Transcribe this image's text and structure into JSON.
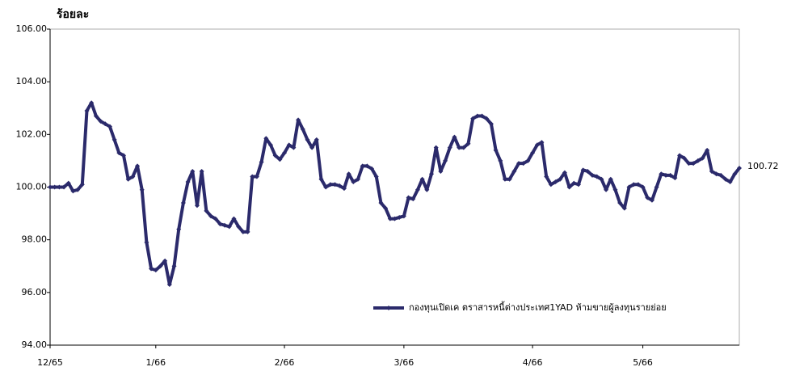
{
  "chart_data": {
    "type": "line",
    "title": "ร้อยละ",
    "categories": [
      "12/65",
      null,
      null,
      null,
      null,
      null,
      null,
      null,
      null,
      null,
      null,
      null,
      null,
      null,
      null,
      null,
      null,
      null,
      null,
      null,
      null,
      null,
      null,
      "1/66",
      null,
      null,
      null,
      null,
      null,
      null,
      null,
      null,
      null,
      null,
      null,
      null,
      null,
      null,
      null,
      null,
      null,
      null,
      null,
      null,
      null,
      null,
      null,
      null,
      null,
      null,
      null,
      "2/66",
      null,
      null,
      null,
      null,
      null,
      null,
      null,
      null,
      null,
      null,
      null,
      null,
      null,
      null,
      null,
      null,
      null,
      null,
      null,
      null,
      null,
      null,
      null,
      null,
      null,
      "3/66",
      null,
      null,
      null,
      null,
      null,
      null,
      null,
      null,
      null,
      null,
      null,
      null,
      null,
      null,
      null,
      null,
      null,
      null,
      null,
      null,
      null,
      null,
      null,
      null,
      null,
      null,
      null,
      "4/66",
      null,
      null,
      null,
      null,
      null,
      null,
      null,
      null,
      null,
      null,
      null,
      null,
      null,
      null,
      null,
      null,
      null,
      null,
      null,
      null,
      null,
      null,
      null,
      "5/66",
      null,
      null,
      null,
      null,
      null,
      null,
      null,
      null,
      null,
      null,
      null,
      null,
      null,
      null,
      null,
      null,
      null,
      null,
      null,
      null,
      null
    ],
    "series": [
      {
        "name": "กองทุนเปิดเค ตราสารหนี้ต่างประเทศ1YAD ห้ามขายผู้ลงทุนรายย่อย",
        "color": "#2b2a6b",
        "values": [
          100.0,
          100.0,
          100.0,
          100.0,
          100.15,
          99.85,
          99.9,
          100.1,
          102.9,
          103.2,
          102.7,
          102.5,
          102.4,
          102.3,
          101.8,
          101.3,
          101.2,
          100.3,
          100.4,
          100.8,
          99.9,
          97.9,
          96.9,
          96.85,
          97.0,
          97.2,
          96.3,
          97.0,
          98.4,
          99.4,
          100.2,
          100.6,
          99.3,
          100.6,
          99.1,
          98.9,
          98.8,
          98.6,
          98.55,
          98.5,
          98.8,
          98.5,
          98.3,
          98.3,
          100.4,
          100.4,
          100.95,
          101.85,
          101.6,
          101.2,
          101.05,
          101.3,
          101.6,
          101.5,
          102.55,
          102.2,
          101.8,
          101.5,
          101.8,
          100.3,
          100.0,
          100.1,
          100.1,
          100.05,
          99.95,
          100.5,
          100.2,
          100.3,
          100.8,
          100.8,
          100.7,
          100.4,
          99.4,
          99.2,
          98.8,
          98.8,
          98.85,
          98.9,
          99.6,
          99.55,
          99.9,
          100.3,
          99.9,
          100.5,
          101.5,
          100.6,
          101.0,
          101.5,
          101.9,
          101.5,
          101.5,
          101.65,
          102.6,
          102.7,
          102.7,
          102.6,
          102.4,
          101.4,
          101.0,
          100.3,
          100.3,
          100.6,
          100.9,
          100.9,
          101.0,
          101.3,
          101.6,
          101.7,
          100.4,
          100.1,
          100.2,
          100.3,
          100.55,
          100.0,
          100.15,
          100.1,
          100.65,
          100.6,
          100.45,
          100.4,
          100.3,
          99.9,
          100.3,
          99.9,
          99.4,
          99.2,
          100.0,
          100.1,
          100.1,
          100.0,
          99.6,
          99.5,
          100.0,
          100.5,
          100.45,
          100.45,
          100.35,
          101.2,
          101.1,
          100.9,
          100.9,
          101.0,
          101.1,
          101.4,
          100.6,
          100.5,
          100.45,
          100.3,
          100.2,
          100.5,
          100.72
        ]
      }
    ],
    "ylim": [
      94,
      106
    ],
    "yticks": [
      {
        "value": 94,
        "label": "94.00"
      },
      {
        "value": 96,
        "label": "96.00"
      },
      {
        "value": 98,
        "label": "98.00"
      },
      {
        "value": 100,
        "label": "100.00"
      },
      {
        "value": 102,
        "label": "102.00"
      },
      {
        "value": 104,
        "label": "104.00"
      },
      {
        "value": 106,
        "label": "106.00"
      }
    ],
    "grid": false,
    "legend": "lower right"
  }
}
